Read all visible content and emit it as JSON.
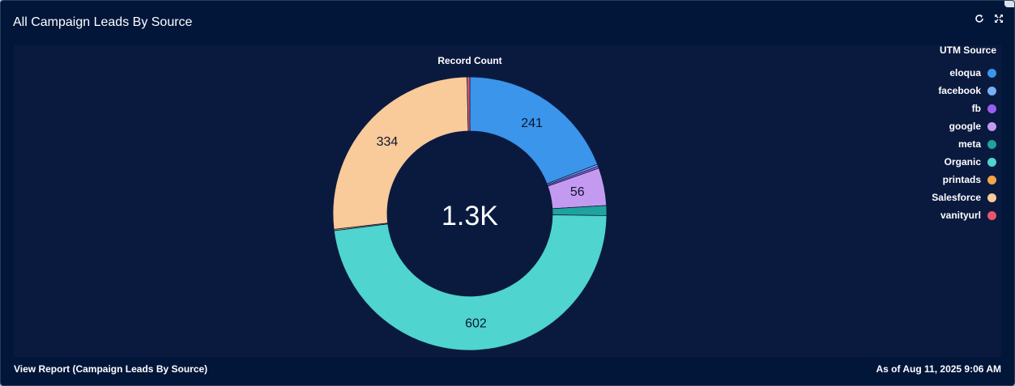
{
  "widget": {
    "title": "All Campaign Leads By Source",
    "view_report": "View Report (Campaign Leads By Source)",
    "as_of": "As of Aug 11, 2025 9:06 AM"
  },
  "icons": {
    "refresh": "refresh-icon",
    "expand": "expand-icon"
  },
  "legend": {
    "title": "UTM Source",
    "items": [
      {
        "label": "eloqua",
        "color": "#3b95ea"
      },
      {
        "label": "facebook",
        "color": "#78b0f0"
      },
      {
        "label": "fb",
        "color": "#9a5ff0"
      },
      {
        "label": "google",
        "color": "#c49af0"
      },
      {
        "label": "meta",
        "color": "#1fa39d"
      },
      {
        "label": "Organic",
        "color": "#4fd4cf"
      },
      {
        "label": "printads",
        "color": "#f2a549"
      },
      {
        "label": "Salesforce",
        "color": "#f9ca9a"
      },
      {
        "label": "vanityurl",
        "color": "#e8566c"
      }
    ]
  },
  "chart_data": {
    "type": "pie",
    "title": "Record Count",
    "center_label": "1.3K",
    "donut": true,
    "categories": [
      "eloqua",
      "facebook",
      "fb",
      "google",
      "meta",
      "Organic",
      "printads",
      "Salesforce",
      "vanityurl"
    ],
    "values": [
      241,
      3,
      3,
      56,
      15,
      602,
      2,
      334,
      4
    ],
    "data_labels": [
      "241",
      "",
      "",
      "56",
      "",
      "602",
      "",
      "334",
      ""
    ],
    "colors": [
      "#3b95ea",
      "#78b0f0",
      "#9a5ff0",
      "#c49af0",
      "#1fa39d",
      "#4fd4cf",
      "#f2a549",
      "#f9ca9a",
      "#e8566c"
    ],
    "legend_title": "UTM Source",
    "legend_position": "right"
  }
}
